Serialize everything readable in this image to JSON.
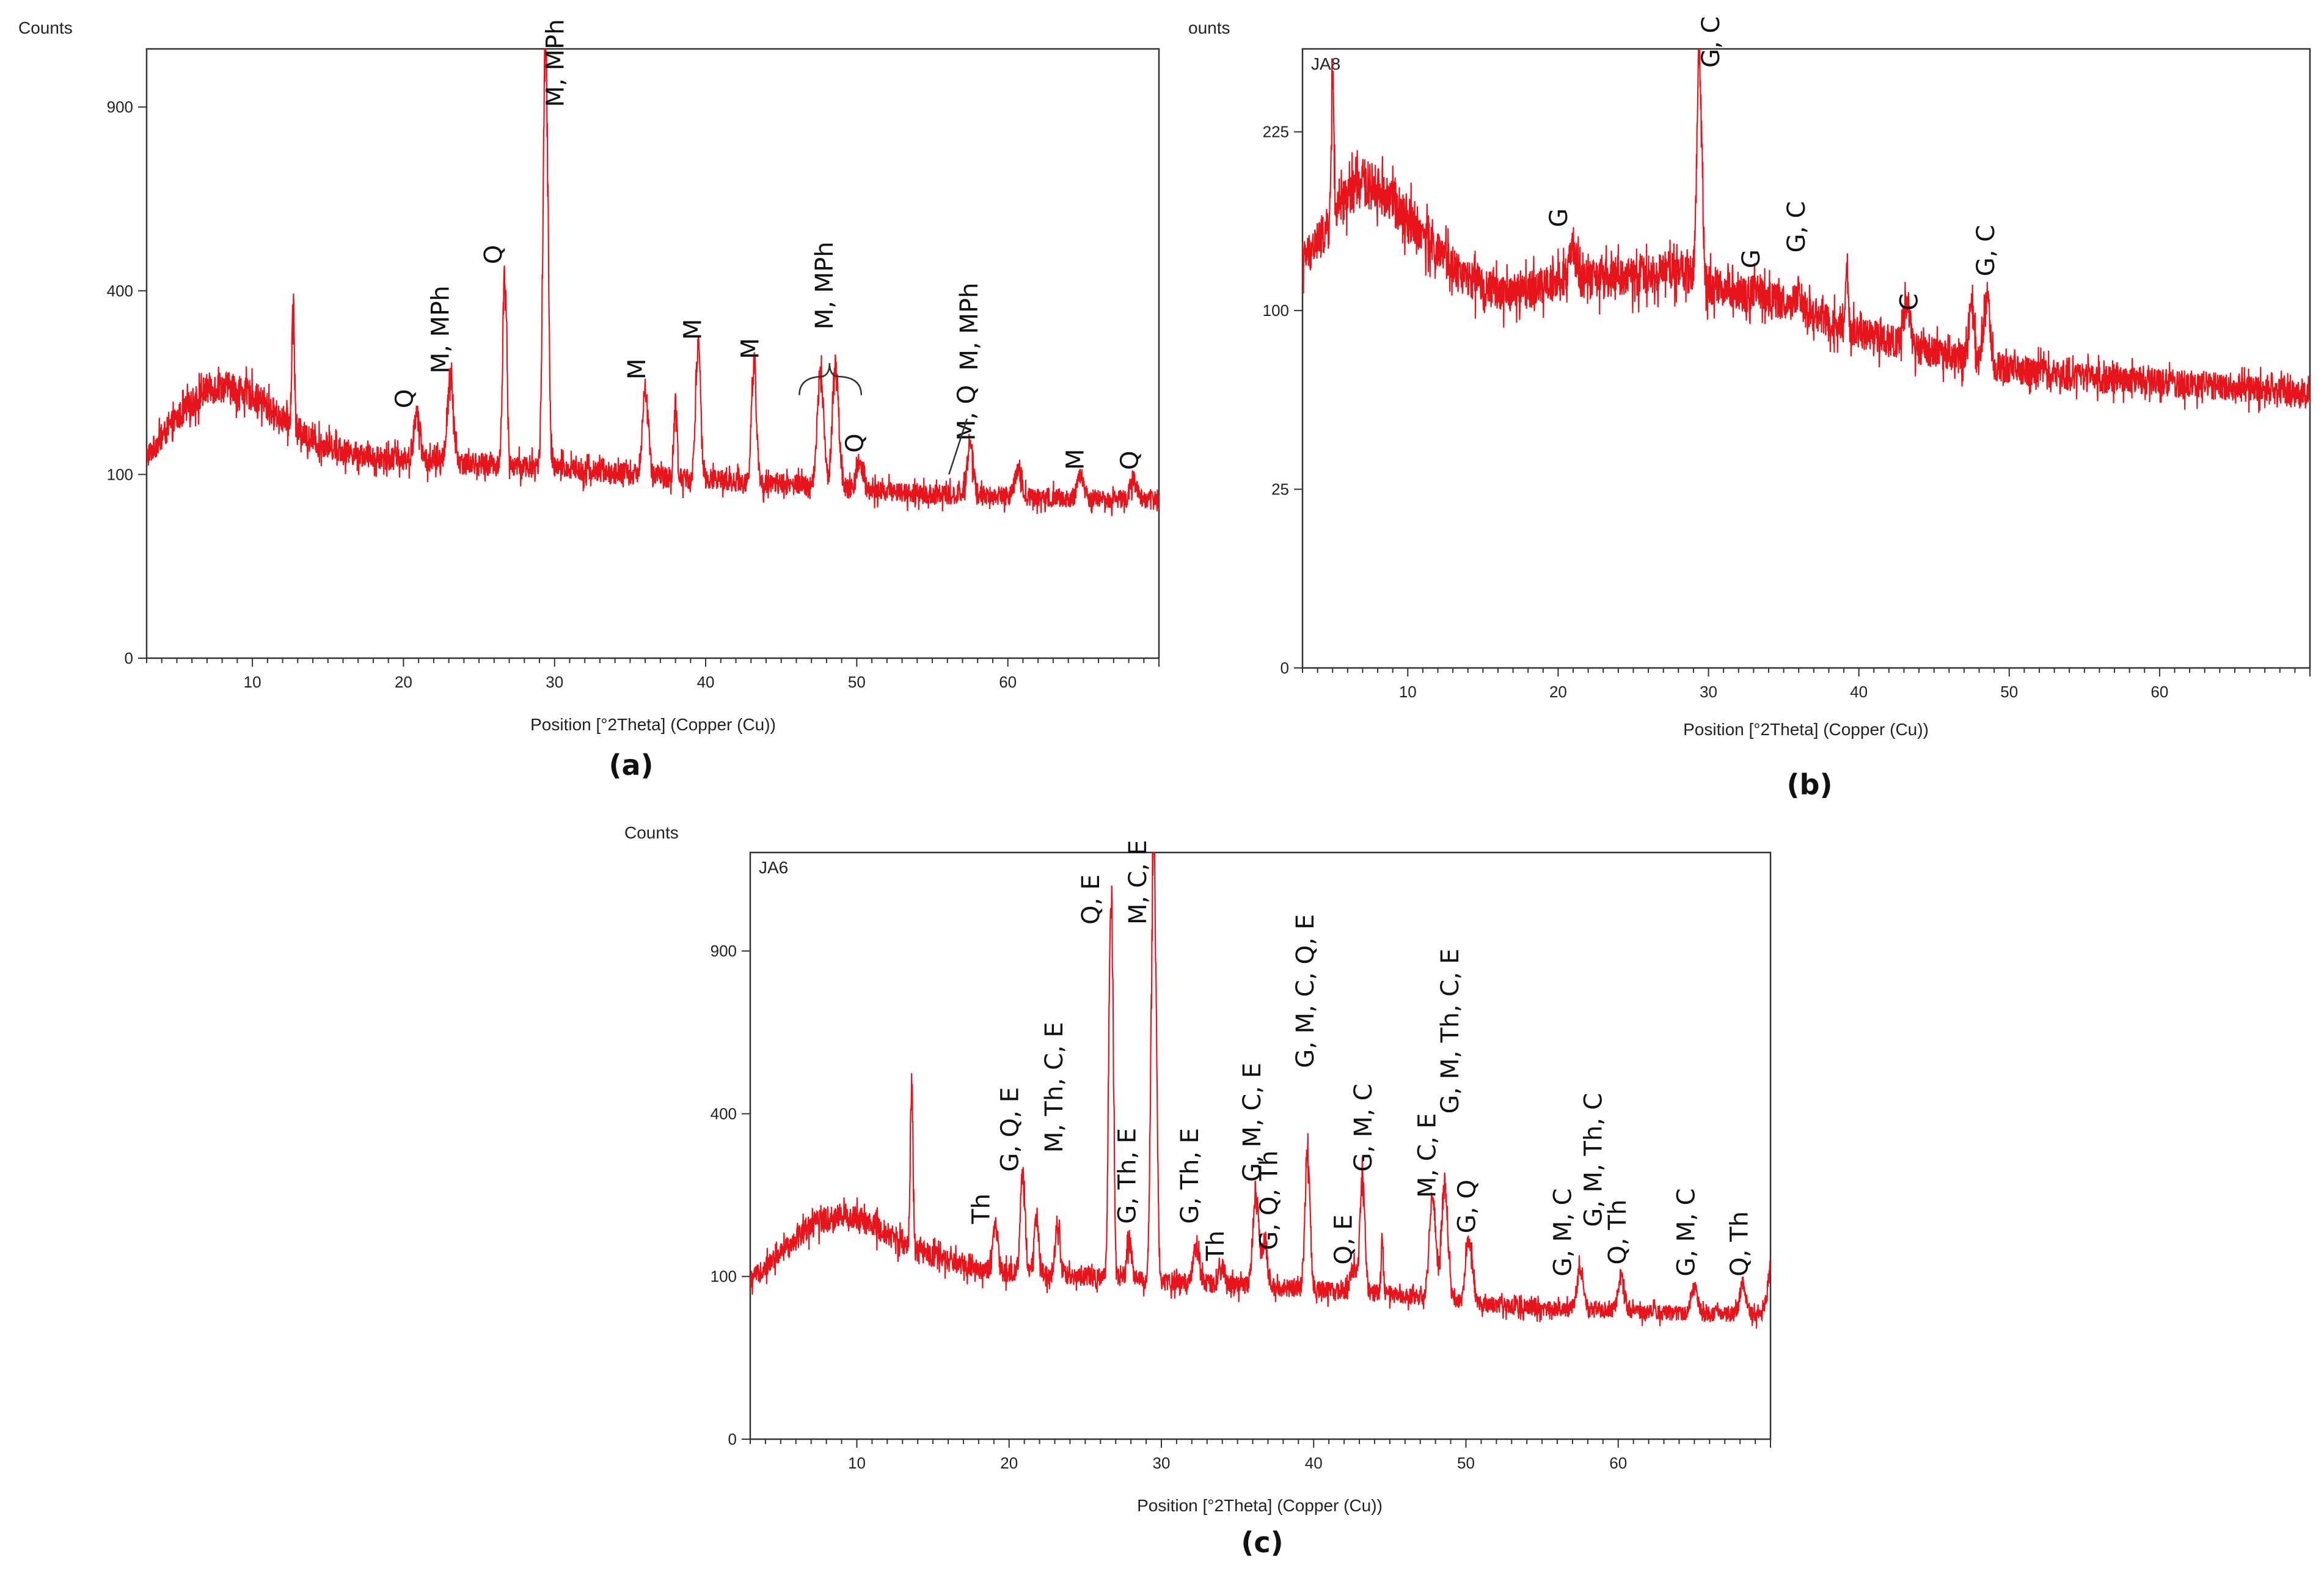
{
  "chart_data": [
    {
      "id": "a",
      "type": "line",
      "panel_label": "(a)",
      "sample_label": "",
      "ylabel": "Counts",
      "xlabel": "Position [°2Theta] (Copper (Cu))",
      "xlim": [
        3,
        70
      ],
      "ylim": [
        0,
        1100
      ],
      "yscale": "sqrt",
      "xticks": [
        10,
        20,
        30,
        40,
        50,
        60
      ],
      "yticks": [
        0,
        100,
        400,
        900
      ],
      "color": "#e8141b",
      "background": {
        "x": [
          3,
          5,
          7,
          8,
          10,
          12,
          14,
          16,
          18,
          20,
          25,
          30,
          35,
          40,
          45,
          50,
          55,
          60,
          65,
          70
        ],
        "y": [
          120,
          170,
          215,
          220,
          205,
          170,
          140,
          128,
          120,
          118,
          112,
          108,
          100,
          95,
          90,
          85,
          80,
          78,
          76,
          74
        ]
      },
      "peaks": [
        {
          "x": 12.7,
          "y": 370,
          "w": 0.08
        },
        {
          "x": 20.9,
          "y": 175,
          "w": 0.2
        },
        {
          "x": 23.1,
          "y": 225,
          "w": 0.2
        },
        {
          "x": 26.7,
          "y": 440,
          "w": 0.12
        },
        {
          "x": 29.4,
          "y": 1100,
          "w": 0.14
        },
        {
          "x": 36.0,
          "y": 215,
          "w": 0.18
        },
        {
          "x": 38.0,
          "y": 190,
          "w": 0.1
        },
        {
          "x": 39.5,
          "y": 290,
          "w": 0.15
        },
        {
          "x": 43.2,
          "y": 255,
          "w": 0.15
        },
        {
          "x": 47.6,
          "y": 235,
          "w": 0.2
        },
        {
          "x": 48.6,
          "y": 240,
          "w": 0.2
        },
        {
          "x": 50.2,
          "y": 115,
          "w": 0.2
        },
        {
          "x": 57.5,
          "y": 130,
          "w": 0.2
        },
        {
          "x": 60.7,
          "y": 110,
          "w": 0.2
        },
        {
          "x": 64.8,
          "y": 100,
          "w": 0.2
        },
        {
          "x": 68.3,
          "y": 95,
          "w": 0.2
        }
      ],
      "noise": 0.12,
      "peak_labels": [
        {
          "text": "Q",
          "x": 20.6,
          "y": 185
        },
        {
          "text": "M, MPh",
          "x": 23.0,
          "y": 240
        },
        {
          "text": "Q",
          "x": 26.5,
          "y": 460
        },
        {
          "text": "M, MPh",
          "x": 30.6,
          "y": 900
        },
        {
          "text": "M",
          "x": 36.0,
          "y": 230
        },
        {
          "text": "M",
          "x": 39.7,
          "y": 300
        },
        {
          "text": "M",
          "x": 43.5,
          "y": 265
        },
        {
          "text": "M, MPh",
          "x": 48.4,
          "y": 320
        },
        {
          "text": "Q",
          "x": 50.4,
          "y": 125
        },
        {
          "text": "M, MPh",
          "x": 58.0,
          "y": 245
        },
        {
          "text": "M, Q",
          "x": 57.8,
          "y": 140
        },
        {
          "text": "M",
          "x": 65.0,
          "y": 105
        },
        {
          "text": "Q",
          "x": 68.6,
          "y": 105
        }
      ]
    },
    {
      "id": "b",
      "type": "line",
      "panel_label": "(b)",
      "sample_label": "JA8",
      "ylabel": "ounts",
      "xlabel": "Position [°2Theta] (Copper (Cu))",
      "xlim": [
        3,
        70
      ],
      "ylim": [
        0,
        300
      ],
      "yscale": "sqrt",
      "xticks": [
        10,
        20,
        30,
        40,
        50,
        60
      ],
      "yticks": [
        0,
        25,
        100,
        225
      ],
      "color": "#e8141b",
      "background": {
        "x": [
          3,
          5,
          6,
          7,
          8,
          10,
          12,
          14,
          16,
          18,
          20,
          25,
          28,
          30,
          35,
          40,
          45,
          50,
          55,
          60,
          65,
          70
        ],
        "y": [
          130,
          155,
          175,
          185,
          180,
          160,
          135,
          118,
          110,
          112,
          118,
          120,
          125,
          115,
          105,
          88,
          78,
          70,
          66,
          64,
          62,
          58
        ]
      },
      "peaks": [
        {
          "x": 5.0,
          "y": 280,
          "w": 0.08
        },
        {
          "x": 21.0,
          "y": 135,
          "w": 0.25
        },
        {
          "x": 29.4,
          "y": 300,
          "w": 0.15
        },
        {
          "x": 33.2,
          "y": 112,
          "w": 0.2
        },
        {
          "x": 36.0,
          "y": 112,
          "w": 0.2
        },
        {
          "x": 39.2,
          "y": 130,
          "w": 0.08
        },
        {
          "x": 43.2,
          "y": 102,
          "w": 0.2
        },
        {
          "x": 47.5,
          "y": 100,
          "w": 0.2
        },
        {
          "x": 48.5,
          "y": 108,
          "w": 0.2
        }
      ],
      "noise": 0.1,
      "peak_labels": [
        {
          "text": "G",
          "x": 20.6,
          "y": 152
        },
        {
          "text": "G, C",
          "x": 30.7,
          "y": 282
        },
        {
          "text": "G",
          "x": 33.4,
          "y": 125
        },
        {
          "text": "G, C",
          "x": 36.4,
          "y": 135
        },
        {
          "text": "C",
          "x": 43.9,
          "y": 100
        },
        {
          "text": "G, C",
          "x": 49.0,
          "y": 120
        }
      ]
    },
    {
      "id": "c",
      "type": "line",
      "panel_label": "(c)",
      "sample_label": "JA6",
      "ylabel": "Counts",
      "xlabel": "Position [°2Theta] (Copper (Cu))",
      "xlim": [
        3,
        70
      ],
      "ylim": [
        0,
        1300
      ],
      "yscale": "sqrt",
      "xticks": [
        10,
        20,
        30,
        40,
        50,
        60
      ],
      "yticks": [
        0,
        100,
        400,
        900
      ],
      "color": "#e8141b",
      "background": {
        "x": [
          3,
          5,
          7,
          9,
          10,
          12,
          14,
          16,
          18,
          20,
          25,
          30,
          35,
          40,
          45,
          50,
          55,
          60,
          65,
          70
        ],
        "y": [
          95,
          130,
          175,
          190,
          185,
          160,
          135,
          120,
          110,
          105,
          100,
          95,
          90,
          85,
          80,
          70,
          65,
          62,
          60,
          58
        ]
      },
      "peaks": [
        {
          "x": 13.6,
          "y": 480,
          "w": 0.08
        },
        {
          "x": 19.1,
          "y": 170,
          "w": 0.15
        },
        {
          "x": 20.9,
          "y": 260,
          "w": 0.15
        },
        {
          "x": 21.8,
          "y": 180,
          "w": 0.15
        },
        {
          "x": 23.2,
          "y": 180,
          "w": 0.15
        },
        {
          "x": 26.7,
          "y": 1150,
          "w": 0.12
        },
        {
          "x": 27.9,
          "y": 150,
          "w": 0.15
        },
        {
          "x": 29.5,
          "y": 1300,
          "w": 0.14
        },
        {
          "x": 32.3,
          "y": 140,
          "w": 0.2
        },
        {
          "x": 34.0,
          "y": 110,
          "w": 0.2
        },
        {
          "x": 36.2,
          "y": 230,
          "w": 0.18
        },
        {
          "x": 36.8,
          "y": 150,
          "w": 0.15
        },
        {
          "x": 39.6,
          "y": 300,
          "w": 0.15
        },
        {
          "x": 42.6,
          "y": 110,
          "w": 0.2
        },
        {
          "x": 43.2,
          "y": 250,
          "w": 0.15
        },
        {
          "x": 44.5,
          "y": 140,
          "w": 0.08
        },
        {
          "x": 47.8,
          "y": 220,
          "w": 0.2
        },
        {
          "x": 48.6,
          "y": 240,
          "w": 0.2
        },
        {
          "x": 50.2,
          "y": 155,
          "w": 0.2
        },
        {
          "x": 57.5,
          "y": 110,
          "w": 0.2
        },
        {
          "x": 60.2,
          "y": 100,
          "w": 0.2
        },
        {
          "x": 65.0,
          "y": 85,
          "w": 0.2
        },
        {
          "x": 68.2,
          "y": 90,
          "w": 0.2
        },
        {
          "x": 70.0,
          "y": 110,
          "w": 0.2
        }
      ],
      "noise": 0.12,
      "peak_labels": [
        {
          "text": "Th",
          "x": 18.7,
          "y": 175
        },
        {
          "text": "G, Q, E",
          "x": 20.6,
          "y": 270
        },
        {
          "text": "M, Th, C, E",
          "x": 23.5,
          "y": 310
        },
        {
          "text": "Q, E",
          "x": 25.9,
          "y": 1000
        },
        {
          "text": "M, C, E",
          "x": 29.0,
          "y": 1000
        },
        {
          "text": "G, Th, E",
          "x": 28.3,
          "y": 175
        },
        {
          "text": "G, Th, E",
          "x": 32.4,
          "y": 175
        },
        {
          "text": "Th",
          "x": 34.1,
          "y": 120
        },
        {
          "text": "G, M, C, E",
          "x": 36.5,
          "y": 250
        },
        {
          "text": "G, Q, Th",
          "x": 37.6,
          "y": 135
        },
        {
          "text": "G, M, C, Q, E",
          "x": 40.0,
          "y": 520
        },
        {
          "text": "Q, E",
          "x": 42.5,
          "y": 115
        },
        {
          "text": "G, M, C",
          "x": 43.8,
          "y": 270
        },
        {
          "text": "M, C, E",
          "x": 48.0,
          "y": 220
        },
        {
          "text": "G, M, Th, C, E",
          "x": 49.5,
          "y": 400
        },
        {
          "text": "G, Q",
          "x": 50.6,
          "y": 160
        },
        {
          "text": "G, M, C",
          "x": 56.9,
          "y": 100
        },
        {
          "text": "G, M, Th, C",
          "x": 58.9,
          "y": 170
        },
        {
          "text": "Q, Th",
          "x": 60.5,
          "y": 115
        },
        {
          "text": "G, M, C",
          "x": 65.0,
          "y": 100
        },
        {
          "text": "Q, Th",
          "x": 68.5,
          "y": 100
        }
      ]
    }
  ]
}
